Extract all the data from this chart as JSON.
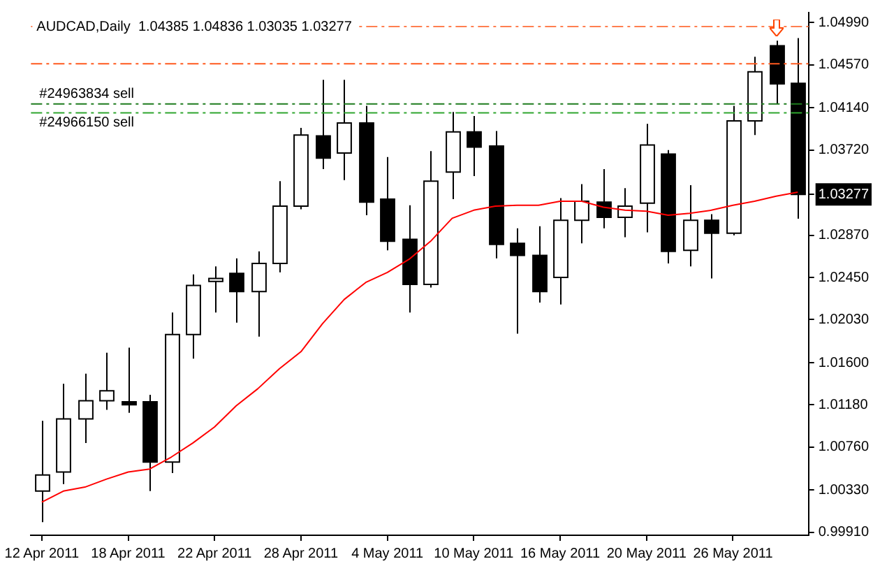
{
  "chart_data": {
    "type": "candlestick",
    "title": "AUDCAD,Daily  1.04385 1.04836 1.03035 1.03277",
    "categories": [
      "12 Apr 2011",
      null,
      null,
      null,
      "18 Apr 2011",
      null,
      null,
      null,
      "22 Apr 2011",
      null,
      null,
      null,
      "28 Apr 2011",
      null,
      null,
      null,
      "4 May 2011",
      null,
      null,
      null,
      "10 May 2011",
      null,
      null,
      null,
      "16 May 2011",
      null,
      null,
      null,
      "20 May 2011",
      null,
      null,
      null,
      "26 May 2011",
      null,
      null,
      null
    ],
    "ohlc": [
      [
        1.0032,
        1.0102,
        1.0001,
        1.0048
      ],
      [
        1.0051,
        1.0139,
        1.0039,
        1.0104
      ],
      [
        1.0104,
        1.0149,
        1.008,
        1.0122
      ],
      [
        1.0122,
        1.017,
        1.0113,
        1.0132
      ],
      [
        1.0121,
        1.0175,
        1.011,
        1.0118
      ],
      [
        1.0121,
        1.0128,
        1.0032,
        1.0061
      ],
      [
        1.0061,
        1.021,
        1.005,
        1.0188
      ],
      [
        1.0188,
        1.0248,
        1.0164,
        1.0237
      ],
      [
        1.0241,
        1.0256,
        1.021,
        1.0244
      ],
      [
        1.0249,
        1.0264,
        1.02,
        1.0231
      ],
      [
        1.0231,
        1.0271,
        1.0186,
        1.0259
      ],
      [
        1.0259,
        1.0341,
        1.025,
        1.0316
      ],
      [
        1.0316,
        1.0394,
        1.0313,
        1.0387
      ],
      [
        1.0386,
        1.0442,
        1.0353,
        1.0364
      ],
      [
        1.0369,
        1.0442,
        1.0342,
        1.0399
      ],
      [
        1.0399,
        1.0416,
        1.0307,
        1.032
      ],
      [
        1.0323,
        1.0365,
        1.0272,
        1.0281
      ],
      [
        1.0283,
        1.0317,
        1.021,
        1.0238
      ],
      [
        1.0238,
        1.0371,
        1.0235,
        1.0341
      ],
      [
        1.035,
        1.041,
        1.0323,
        1.039
      ],
      [
        1.039,
        1.0406,
        1.0346,
        1.0375
      ],
      [
        1.0376,
        1.0391,
        1.0264,
        1.0278
      ],
      [
        1.0279,
        1.0294,
        1.0189,
        1.0267
      ],
      [
        1.0267,
        1.0296,
        1.022,
        1.0231
      ],
      [
        1.0245,
        1.0324,
        1.0218,
        1.0302
      ],
      [
        1.0302,
        1.0338,
        1.0279,
        1.0321
      ],
      [
        1.032,
        1.0353,
        1.0294,
        1.0305
      ],
      [
        1.0305,
        1.0334,
        1.0285,
        1.0316
      ],
      [
        1.0319,
        1.0398,
        1.029,
        1.0377
      ],
      [
        1.0368,
        1.0372,
        1.0259,
        1.0271
      ],
      [
        1.0272,
        1.0337,
        1.0256,
        1.0302
      ],
      [
        1.0302,
        1.0308,
        1.0244,
        1.0289
      ],
      [
        1.0289,
        1.0416,
        1.0287,
        1.0401
      ],
      [
        1.0401,
        1.0465,
        1.0387,
        1.045
      ],
      [
        1.0476,
        1.0481,
        1.0418,
        1.0438
      ],
      [
        1.04385,
        1.04836,
        1.03035,
        1.03277
      ]
    ],
    "series": [
      {
        "type": "line",
        "color": "#ff0000",
        "values": [
          1.0021,
          1.0032,
          1.0036,
          1.0044,
          1.0051,
          1.0054,
          1.0066,
          1.008,
          1.0096,
          1.0117,
          1.0134,
          1.0154,
          1.0171,
          1.0199,
          1.0223,
          1.024,
          1.025,
          1.0263,
          1.0281,
          1.0304,
          1.0312,
          1.0316,
          1.0317,
          1.0317,
          1.0321,
          1.0321,
          1.0315,
          1.0312,
          1.0311,
          1.0307,
          1.0309,
          1.0312,
          1.0317,
          1.0321,
          1.0326,
          1.033
        ]
      }
    ],
    "ylim": [
      0.9988,
      1.0509
    ],
    "yticks": [
      {
        "value": 1.0499,
        "label": "1.04990"
      },
      {
        "value": 1.0457,
        "label": "1.04570"
      },
      {
        "value": 1.0414,
        "label": "1.04140"
      },
      {
        "value": 1.0372,
        "label": "1.03720"
      },
      {
        "value": 1.03277,
        "label": "1.03277"
      },
      {
        "value": 1.0287,
        "label": "1.02870"
      },
      {
        "value": 1.0245,
        "label": "1.02450"
      },
      {
        "value": 1.0203,
        "label": "1.02030"
      },
      {
        "value": 1.016,
        "label": "1.01600"
      },
      {
        "value": 1.0118,
        "label": "1.01180"
      },
      {
        "value": 1.0076,
        "label": "1.00760"
      },
      {
        "value": 1.0033,
        "label": "1.00330"
      },
      {
        "value": 0.9991,
        "label": "0.99910"
      }
    ],
    "ref_lines": [
      {
        "axis": "y",
        "value": 1.0495,
        "color": "#ff7f50",
        "line_style": "dashed"
      },
      {
        "axis": "y",
        "value": 1.0458,
        "color": "#ff5a1f",
        "line_style": "dashed"
      },
      {
        "axis": "y",
        "value": 1.0418,
        "label": "#24963834 sell",
        "color": "#1e7b1e",
        "line_style": "dashed"
      },
      {
        "axis": "y",
        "value": 1.0409,
        "label": "#24966150 sell",
        "color": "#2ea52e",
        "line_style": "dashed"
      }
    ],
    "grid": false,
    "legend": false
  }
}
